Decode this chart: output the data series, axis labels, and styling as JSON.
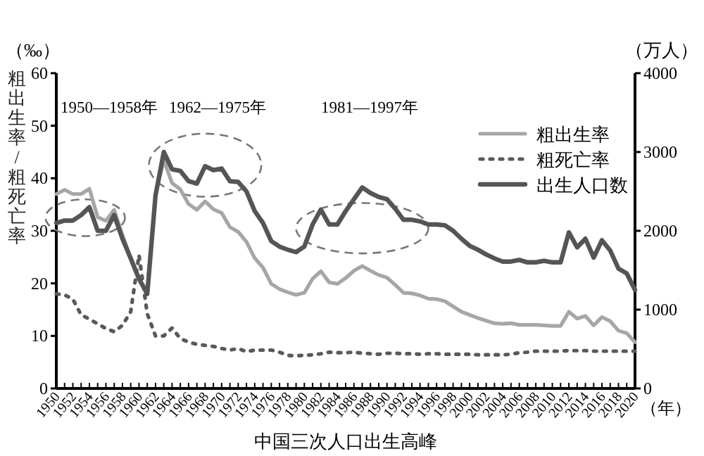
{
  "chart_data": {
    "type": "line",
    "xlabel": "（年）",
    "ylabel": "粗出生率/粗死亡率",
    "y2label": "（万人）",
    "annotations": [
      "中国三次人口出生高峰",
      "（‰）",
      "1950—1958年",
      "1962—1975年",
      "1981—1997年"
    ],
    "x": [
      1950,
      1951,
      1952,
      1953,
      1954,
      1955,
      1956,
      1957,
      1958,
      1959,
      1960,
      1961,
      1962,
      1963,
      1964,
      1965,
      1966,
      1967,
      1968,
      1969,
      1970,
      1971,
      1972,
      1973,
      1974,
      1975,
      1976,
      1977,
      1978,
      1979,
      1980,
      1981,
      1982,
      1983,
      1984,
      1985,
      1986,
      1987,
      1988,
      1989,
      1990,
      1991,
      1992,
      1993,
      1994,
      1995,
      1996,
      1997,
      1998,
      1999,
      2000,
      2001,
      2002,
      2003,
      2004,
      2005,
      2006,
      2007,
      2008,
      2009,
      2010,
      2011,
      2012,
      2013,
      2014,
      2015,
      2016,
      2017,
      2018,
      2019,
      2020
    ],
    "series": [
      {
        "name": "粗出生率",
        "color": "#a6a6a6",
        "line_style": "solid",
        "values": [
          37.0,
          37.8,
          37.0,
          37.0,
          38.0,
          32.6,
          31.9,
          34.0,
          29.2,
          24.8,
          20.9,
          18.0,
          37.0,
          43.4,
          39.1,
          37.9,
          35.1,
          34.0,
          35.6,
          34.1,
          33.4,
          30.7,
          29.8,
          27.9,
          24.8,
          23.0,
          19.9,
          18.9,
          18.3,
          17.8,
          18.2,
          20.9,
          22.3,
          20.2,
          19.9,
          21.0,
          22.4,
          23.3,
          22.4,
          21.6,
          21.1,
          19.7,
          18.2,
          18.1,
          17.7,
          17.1,
          17.0,
          16.6,
          15.6,
          14.6,
          14.0,
          13.4,
          12.9,
          12.4,
          12.3,
          12.4,
          12.1,
          12.1,
          12.1,
          12.0,
          11.9,
          11.9,
          14.6,
          13.3,
          13.8,
          12.0,
          13.6,
          12.8,
          11.0,
          10.5,
          8.8
        ]
      },
      {
        "name": "粗死亡率",
        "color": "#595959",
        "line_style": "dotted",
        "values": [
          18.0,
          17.8,
          17.0,
          14.0,
          13.2,
          12.3,
          11.4,
          10.8,
          12.0,
          14.6,
          25.4,
          14.2,
          10.0,
          10.0,
          11.5,
          9.5,
          8.8,
          8.4,
          8.2,
          8.0,
          7.6,
          7.3,
          7.6,
          7.0,
          7.3,
          7.3,
          7.3,
          6.9,
          6.3,
          6.2,
          6.3,
          6.4,
          6.6,
          6.9,
          6.8,
          6.8,
          6.9,
          6.7,
          6.6,
          6.5,
          6.7,
          6.7,
          6.6,
          6.6,
          6.5,
          6.6,
          6.6,
          6.5,
          6.5,
          6.5,
          6.5,
          6.4,
          6.4,
          6.4,
          6.4,
          6.5,
          6.8,
          6.9,
          7.1,
          7.1,
          7.1,
          7.1,
          7.2,
          7.2,
          7.2,
          7.1,
          7.1,
          7.1,
          7.1,
          7.1,
          7.1
        ]
      },
      {
        "name": "出生人口数",
        "color": "#555555",
        "line_style": "solid",
        "axis": "y2",
        "values": [
          2100,
          2130,
          2130,
          2200,
          2300,
          2000,
          2000,
          2200,
          1900,
          1650,
          1390,
          1200,
          2450,
          3000,
          2780,
          2760,
          2630,
          2600,
          2820,
          2770,
          2790,
          2630,
          2620,
          2500,
          2250,
          2100,
          1870,
          1800,
          1760,
          1730,
          1800,
          2080,
          2270,
          2080,
          2080,
          2250,
          2400,
          2550,
          2480,
          2430,
          2400,
          2280,
          2140,
          2140,
          2120,
          2080,
          2080,
          2070,
          2000,
          1900,
          1810,
          1760,
          1700,
          1650,
          1610,
          1610,
          1630,
          1600,
          1600,
          1620,
          1600,
          1600,
          1980,
          1790,
          1900,
          1660,
          1880,
          1750,
          1520,
          1460,
          1250
        ]
      }
    ],
    "xlim": [
      1950,
      2020
    ],
    "ylim": [
      0,
      60
    ],
    "y2lim": [
      0,
      4000
    ],
    "xticks": [
      1950,
      {
        "value": 1951,
        "label": null
      },
      1952,
      {
        "value": 1953,
        "label": null
      },
      1954,
      {
        "value": 1955,
        "label": null
      },
      1956,
      {
        "value": 1957,
        "label": null
      },
      1958,
      {
        "value": 1959,
        "label": null
      },
      1960,
      {
        "value": 1961,
        "label": null
      },
      1962,
      {
        "value": 1963,
        "label": null
      },
      1964,
      {
        "value": 1965,
        "label": null
      },
      1966,
      {
        "value": 1967,
        "label": null
      },
      1968,
      {
        "value": 1969,
        "label": null
      },
      1970,
      {
        "value": 1971,
        "label": null
      },
      1972,
      {
        "value": 1973,
        "label": null
      },
      1974,
      {
        "value": 1975,
        "label": null
      },
      1976,
      {
        "value": 1977,
        "label": null
      },
      1978,
      {
        "value": 1979,
        "label": null
      },
      1980,
      {
        "value": 1981,
        "label": null
      },
      1982,
      {
        "value": 1983,
        "label": null
      },
      1984,
      {
        "value": 1985,
        "label": null
      },
      1986,
      {
        "value": 1987,
        "label": null
      },
      1988,
      {
        "value": 1989,
        "label": null
      },
      1990,
      {
        "value": 1991,
        "label": null
      },
      1992,
      {
        "value": 1993,
        "label": null
      },
      1994,
      {
        "value": 1995,
        "label": null
      },
      1996,
      {
        "value": 1997,
        "label": null
      },
      1998,
      {
        "value": 1999,
        "label": null
      },
      2000,
      {
        "value": 2001,
        "label": null
      },
      2002,
      {
        "value": 2003,
        "label": null
      },
      2004,
      {
        "value": 2005,
        "label": null
      },
      2006,
      {
        "value": 2007,
        "label": null
      },
      2008,
      {
        "value": 2009,
        "label": null
      },
      2010,
      {
        "value": 2011,
        "label": null
      },
      2012,
      {
        "value": 2013,
        "label": null
      },
      2014,
      {
        "value": 2015,
        "label": null
      },
      2016,
      {
        "value": 2017,
        "label": null
      },
      2018,
      {
        "value": 2019,
        "label": null
      },
      2020
    ],
    "yticks": [
      0,
      10,
      20,
      30,
      40,
      50,
      60
    ],
    "y2ticks": [
      0,
      1000,
      2000,
      3000,
      4000
    ],
    "legend": "top right",
    "grid": false,
    "marker": "none"
  }
}
